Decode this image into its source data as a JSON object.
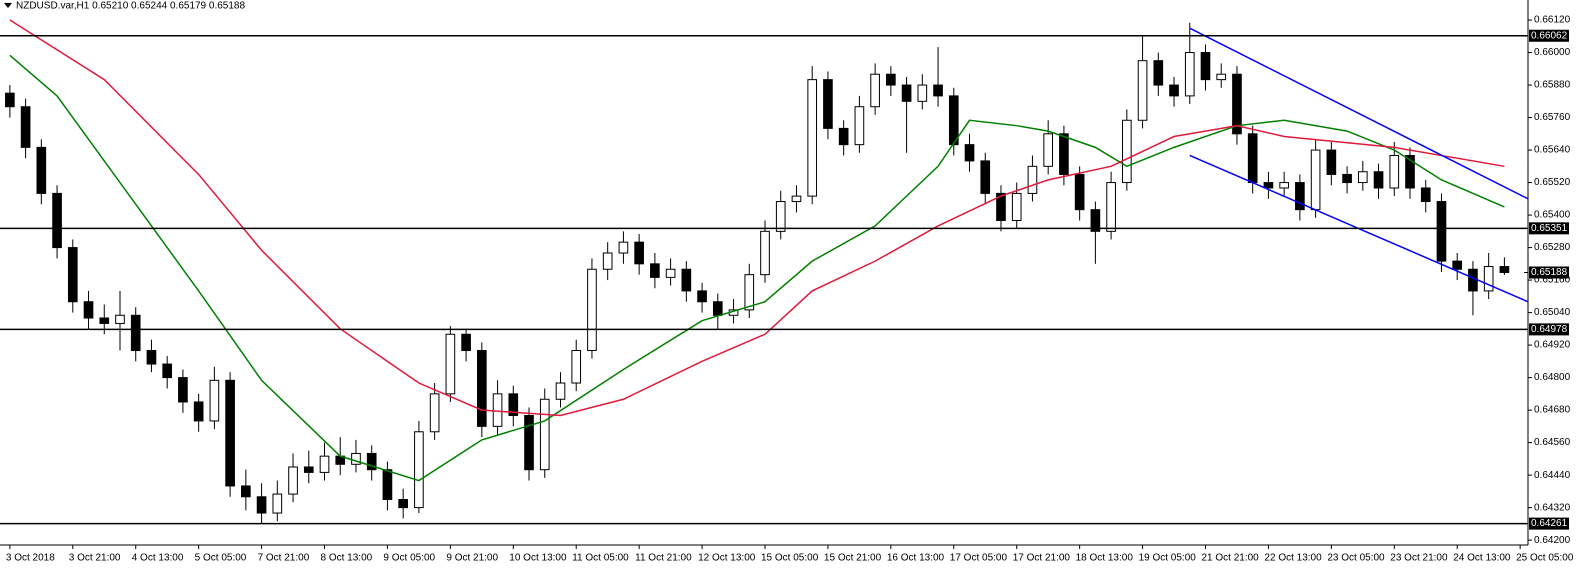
{
  "chart_data": {
    "type": "candlestick",
    "title": "NZDUSD.var,H1  0.65210 0.65244 0.65179 0.65188",
    "open": [
      0.6585,
      0.658,
      0.6565,
      0.6548,
      0.6528,
      0.6508,
      0.6502,
      0.65,
      0.6503,
      0.649,
      0.6485,
      0.648,
      0.6471,
      0.6464,
      0.6479,
      0.644,
      0.6436,
      0.643,
      0.6437,
      0.6447,
      0.6445,
      0.6451,
      0.6448,
      0.6452,
      0.6446,
      0.6435,
      0.6432,
      0.646,
      0.6474,
      0.6496,
      0.649,
      0.6462,
      0.6474,
      0.6466,
      0.6446,
      0.6472,
      0.6478,
      0.649,
      0.652,
      0.6526,
      0.653,
      0.6522,
      0.6517,
      0.652,
      0.6512,
      0.6508,
      0.6503,
      0.6505,
      0.6518,
      0.6534,
      0.6545,
      0.6547,
      0.659,
      0.6572,
      0.6566,
      0.658,
      0.6592,
      0.6588,
      0.6582,
      0.6588,
      0.6584,
      0.6566,
      0.656,
      0.6548,
      0.6538,
      0.6548,
      0.6558,
      0.657,
      0.6555,
      0.6542,
      0.6534,
      0.6552,
      0.6575,
      0.6597,
      0.6588,
      0.6584,
      0.66,
      0.659,
      0.6592,
      0.657,
      0.6552,
      0.655,
      0.6552,
      0.6542,
      0.6564,
      0.6555,
      0.6552,
      0.6556,
      0.655,
      0.6562,
      0.655,
      0.6545,
      0.6523,
      0.652,
      0.6512,
      0.6521
    ],
    "high": [
      0.6588,
      0.6583,
      0.6568,
      0.6551,
      0.6531,
      0.6512,
      0.6507,
      0.6512,
      0.6506,
      0.6494,
      0.6488,
      0.6483,
      0.6474,
      0.6484,
      0.6482,
      0.6446,
      0.6441,
      0.6442,
      0.6452,
      0.6453,
      0.6456,
      0.6458,
      0.6457,
      0.6455,
      0.6449,
      0.6439,
      0.6464,
      0.6478,
      0.6499,
      0.6498,
      0.6493,
      0.6479,
      0.6477,
      0.6469,
      0.6476,
      0.6482,
      0.6494,
      0.6524,
      0.653,
      0.6534,
      0.6533,
      0.6526,
      0.6524,
      0.6523,
      0.6515,
      0.6511,
      0.6509,
      0.6522,
      0.6538,
      0.6549,
      0.6551,
      0.6595,
      0.6593,
      0.6575,
      0.6584,
      0.6596,
      0.6595,
      0.6591,
      0.6592,
      0.6602,
      0.6587,
      0.657,
      0.6563,
      0.6551,
      0.6552,
      0.6562,
      0.6575,
      0.6573,
      0.6558,
      0.6545,
      0.6556,
      0.6579,
      0.6606,
      0.66,
      0.6591,
      0.6611,
      0.6603,
      0.6596,
      0.6595,
      0.6573,
      0.6556,
      0.6556,
      0.6555,
      0.6568,
      0.6567,
      0.6558,
      0.656,
      0.6559,
      0.6567,
      0.6565,
      0.6553,
      0.6548,
      0.6526,
      0.6523,
      0.6526,
      0.65244
    ],
    "low": [
      0.6576,
      0.6561,
      0.6544,
      0.6524,
      0.6504,
      0.6498,
      0.6496,
      0.649,
      0.6486,
      0.6482,
      0.6476,
      0.6467,
      0.646,
      0.6461,
      0.6436,
      0.6431,
      0.6426,
      0.6427,
      0.6434,
      0.6441,
      0.6442,
      0.6444,
      0.6445,
      0.6442,
      0.6431,
      0.6428,
      0.643,
      0.6457,
      0.6471,
      0.6486,
      0.6458,
      0.6459,
      0.6462,
      0.6442,
      0.6443,
      0.6469,
      0.6475,
      0.6487,
      0.6516,
      0.6522,
      0.6518,
      0.6513,
      0.6514,
      0.6508,
      0.6504,
      0.6498,
      0.65,
      0.6502,
      0.6515,
      0.6531,
      0.6541,
      0.6544,
      0.6568,
      0.6562,
      0.6563,
      0.6577,
      0.6584,
      0.6563,
      0.6579,
      0.658,
      0.6562,
      0.6556,
      0.6544,
      0.6534,
      0.6535,
      0.6545,
      0.6555,
      0.6551,
      0.6538,
      0.6522,
      0.6531,
      0.6549,
      0.6572,
      0.6584,
      0.658,
      0.6581,
      0.6586,
      0.6587,
      0.6566,
      0.6548,
      0.6546,
      0.6547,
      0.6538,
      0.6539,
      0.6551,
      0.6548,
      0.6549,
      0.6546,
      0.6547,
      0.6546,
      0.6541,
      0.6519,
      0.6516,
      0.6503,
      0.6509,
      0.65179
    ],
    "close": [
      0.658,
      0.6565,
      0.6548,
      0.6528,
      0.6508,
      0.6502,
      0.65,
      0.6503,
      0.649,
      0.6485,
      0.648,
      0.6471,
      0.6464,
      0.6479,
      0.644,
      0.6436,
      0.643,
      0.6437,
      0.6447,
      0.6445,
      0.6451,
      0.6448,
      0.6452,
      0.6446,
      0.6435,
      0.6432,
      0.646,
      0.6474,
      0.6496,
      0.649,
      0.6462,
      0.6474,
      0.6466,
      0.6446,
      0.6472,
      0.6478,
      0.649,
      0.652,
      0.6526,
      0.653,
      0.6522,
      0.6517,
      0.652,
      0.6512,
      0.6508,
      0.6503,
      0.6505,
      0.6518,
      0.6534,
      0.6545,
      0.6547,
      0.659,
      0.6572,
      0.6566,
      0.658,
      0.6592,
      0.6588,
      0.6582,
      0.6588,
      0.6584,
      0.6566,
      0.656,
      0.6548,
      0.6538,
      0.6548,
      0.6558,
      0.657,
      0.6555,
      0.6542,
      0.6534,
      0.6552,
      0.6575,
      0.6597,
      0.6588,
      0.6584,
      0.66,
      0.659,
      0.6592,
      0.657,
      0.6552,
      0.655,
      0.6552,
      0.6542,
      0.6564,
      0.6555,
      0.6552,
      0.6556,
      0.655,
      0.6562,
      0.655,
      0.6545,
      0.6523,
      0.652,
      0.6512,
      0.6521,
      0.65188
    ],
    "xlim": [
      -0.5,
      96.5
    ],
    "xticks": [
      {
        "value": 0,
        "label": "3 Oct 2018"
      },
      {
        "value": 4,
        "label": "3 Oct 21:00"
      },
      {
        "value": 8,
        "label": "4 Oct 13:00"
      },
      {
        "value": 12,
        "label": "5 Oct 05:00"
      },
      {
        "value": 16,
        "label": "7 Oct 21:00"
      },
      {
        "value": 20,
        "label": "8 Oct 13:00"
      },
      {
        "value": 24,
        "label": "9 Oct 05:00"
      },
      {
        "value": 28,
        "label": "9 Oct 21:00"
      },
      {
        "value": 32,
        "label": "10 Oct 13:00"
      },
      {
        "value": 36,
        "label": "11 Oct 05:00"
      },
      {
        "value": 40,
        "label": "11 Oct 21:00"
      },
      {
        "value": 44,
        "label": "12 Oct 13:00"
      },
      {
        "value": 48,
        "label": "15 Oct 05:00"
      },
      {
        "value": 52,
        "label": "15 Oct 21:00"
      },
      {
        "value": 56,
        "label": "16 Oct 13:00"
      },
      {
        "value": 60,
        "label": "17 Oct 05:00"
      },
      {
        "value": 64,
        "label": "17 Oct 21:00"
      },
      {
        "value": 68,
        "label": "18 Oct 13:00"
      },
      {
        "value": 72,
        "label": "19 Oct 05:00"
      },
      {
        "value": 76,
        "label": "21 Oct 21:00"
      },
      {
        "value": 80,
        "label": "22 Oct 13:00"
      },
      {
        "value": 84,
        "label": "23 Oct 05:00"
      },
      {
        "value": 88,
        "label": "23 Oct 21:00"
      },
      {
        "value": 92,
        "label": "24 Oct 13:00"
      },
      {
        "value": 96,
        "label": "25 Oct 05:00"
      }
    ],
    "ylim": [
      0.64182,
      0.66194
    ],
    "yticks": [
      {
        "value": 0.6612,
        "label": "0.66120"
      },
      {
        "value": 0.66,
        "label": "0.66000"
      },
      {
        "value": 0.6588,
        "label": "0.65880"
      },
      {
        "value": 0.6576,
        "label": "0.65760"
      },
      {
        "value": 0.6564,
        "label": "0.65640"
      },
      {
        "value": 0.6552,
        "label": "0.65520"
      },
      {
        "value": 0.654,
        "label": "0.65400"
      },
      {
        "value": 0.6528,
        "label": "0.65280"
      },
      {
        "value": 0.6516,
        "label": "0.65160"
      },
      {
        "value": 0.6504,
        "label": "0.65040"
      },
      {
        "value": 0.6492,
        "label": "0.64920"
      },
      {
        "value": 0.648,
        "label": "0.64800"
      },
      {
        "value": 0.6468,
        "label": "0.64680"
      },
      {
        "value": 0.6456,
        "label": "0.64560"
      },
      {
        "value": 0.6444,
        "label": "0.64440"
      },
      {
        "value": 0.6432,
        "label": "0.64320"
      },
      {
        "value": 0.642,
        "label": "0.64200"
      }
    ],
    "hlines": {
      "color": "#000000",
      "values": [
        0.66062,
        0.65351,
        0.64978,
        0.64261
      ]
    },
    "last_price": 0.65188,
    "moving_averages": [
      {
        "color": "#008000",
        "x": [
          0,
          3,
          8,
          12,
          16,
          21,
          26,
          30,
          34,
          39,
          44,
          48,
          51,
          55,
          59,
          61,
          64,
          66,
          69,
          71,
          74,
          78,
          81,
          85,
          88,
          91,
          95
        ],
        "values": [
          0.6599,
          0.6584,
          0.6544,
          0.6512,
          0.6479,
          0.6451,
          0.6442,
          0.6457,
          0.6464,
          0.6483,
          0.6501,
          0.6508,
          0.6523,
          0.6536,
          0.6558,
          0.6575,
          0.6573,
          0.6571,
          0.6565,
          0.6558,
          0.6565,
          0.6573,
          0.6575,
          0.6571,
          0.6564,
          0.6553,
          0.6543
        ]
      },
      {
        "color": "#e0193c",
        "x": [
          0,
          6,
          12,
          16,
          21,
          26,
          30,
          35,
          39,
          44,
          48,
          51,
          55,
          59,
          63,
          66,
          70,
          74,
          78,
          81,
          88,
          95
        ],
        "values": [
          0.6612,
          0.659,
          0.6555,
          0.6527,
          0.6498,
          0.6478,
          0.6468,
          0.6466,
          0.6472,
          0.6486,
          0.6496,
          0.6512,
          0.6523,
          0.6536,
          0.6547,
          0.6553,
          0.6558,
          0.6569,
          0.6573,
          0.6569,
          0.6565,
          0.6558
        ]
      }
    ],
    "trend_lines": [
      {
        "color": "#0000ff",
        "x": [
          75,
          96.5
        ],
        "values": [
          0.6609,
          0.6546
        ]
      },
      {
        "color": "#0000ff",
        "x": [
          75,
          96.5
        ],
        "values": [
          0.6562,
          0.6508
        ]
      }
    ]
  }
}
